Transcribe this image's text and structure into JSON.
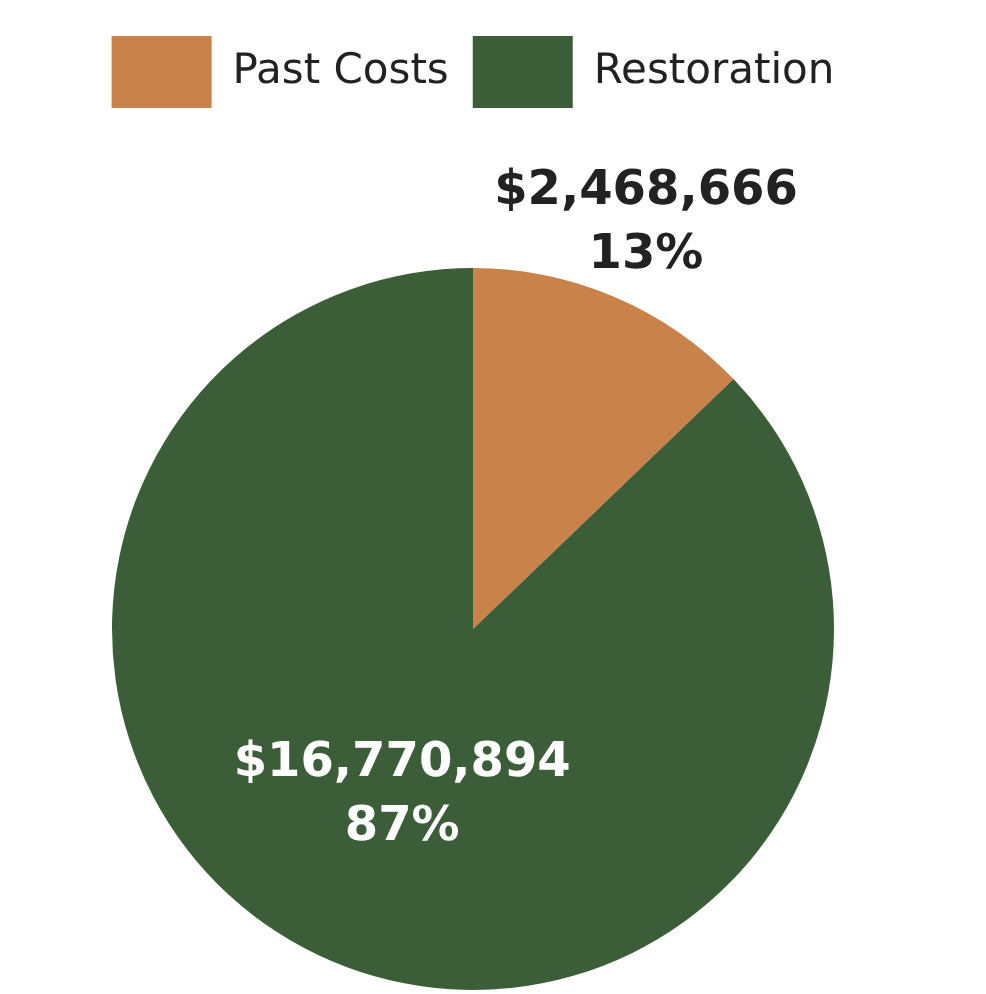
{
  "chart_data": {
    "type": "pie",
    "categories": [
      "Past Costs",
      "Restoration"
    ],
    "values": [
      2468666,
      16770894
    ],
    "colors": [
      "#c8824a",
      "#3b5e38"
    ],
    "value_labels": [
      "$2,468,666\n13%",
      "$16,770,894\n87%"
    ],
    "legend": "top"
  }
}
